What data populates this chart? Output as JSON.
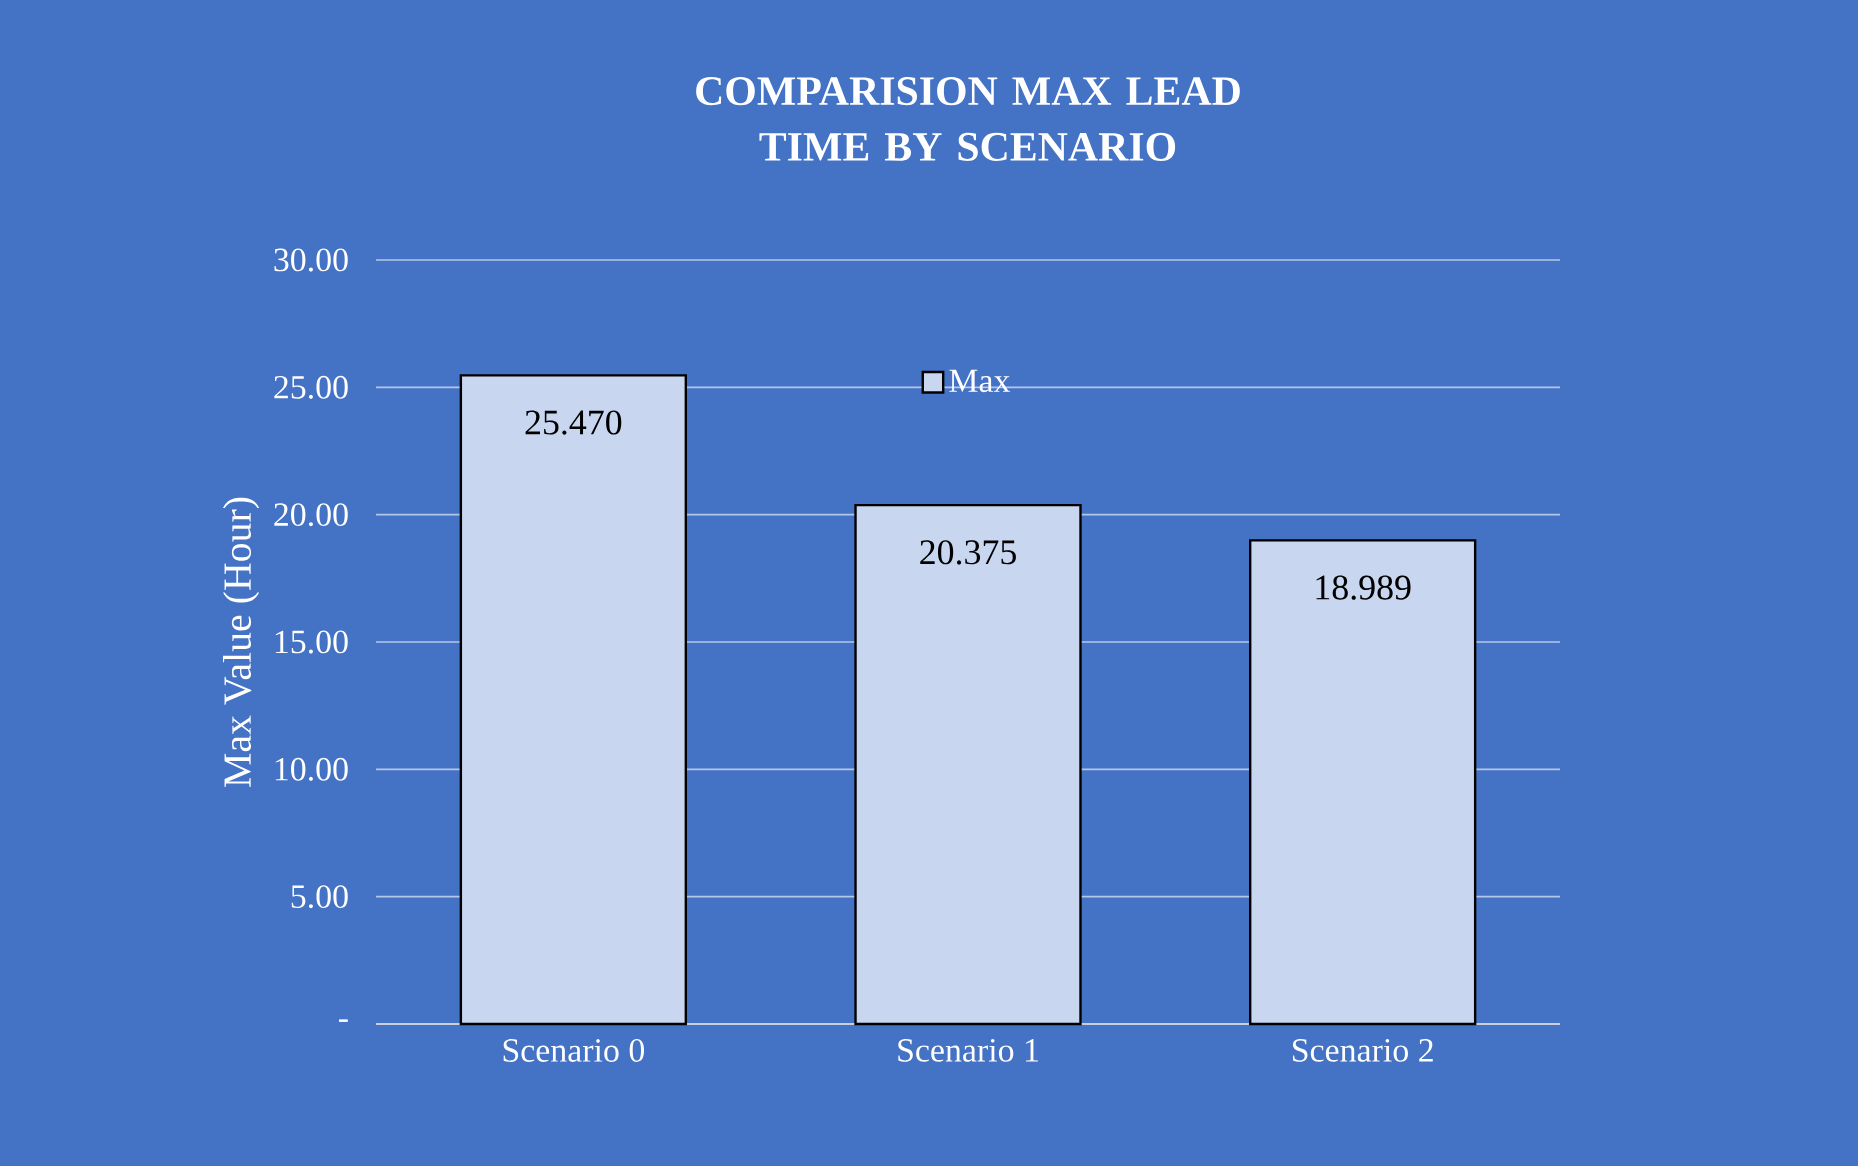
{
  "chart_data": {
    "type": "bar",
    "title": "COMPARISION MAX LEAD TIME BY SCENARIO",
    "ylabel": "Max Value (Hour)",
    "categories": [
      "Scenario 0",
      "Scenario 1",
      "Scenario 2"
    ],
    "series": [
      {
        "name": "Max",
        "color": "#c9d6f0",
        "values": [
          25.47,
          20.375,
          18.989
        ],
        "value_labels": [
          "25.470",
          "20.375",
          "18.989"
        ]
      }
    ],
    "ylim": [
      0,
      30
    ],
    "yticks": [
      {
        "value": 0,
        "label": "-"
      },
      {
        "value": 5,
        "label": "5.00"
      },
      {
        "value": 10,
        "label": "10.00"
      },
      {
        "value": 15,
        "label": "15.00"
      },
      {
        "value": 20,
        "label": "20.00"
      },
      {
        "value": 25,
        "label": "25.00"
      },
      {
        "value": 30,
        "label": "30.00"
      }
    ],
    "grid": "y",
    "legend": "top"
  }
}
